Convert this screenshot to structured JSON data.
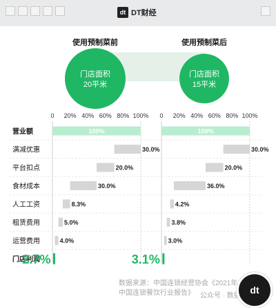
{
  "header": {
    "brand_mark": "dt",
    "brand": "DT财经"
  },
  "colors": {
    "accent_green": "#1fb764",
    "light_green": "#b9edcf",
    "bar_gray": "#d6d6d6",
    "connector": "#e2efe6"
  },
  "chart_data": {
    "type": "bar",
    "panels": [
      {
        "title": "使用预制菜前",
        "circle_label": "门店面积",
        "circle_value": "20平米",
        "values": [
          100,
          30.0,
          20.0,
          30.0,
          8.3,
          5.0,
          4.0
        ],
        "value_labels": [
          "100%",
          "30.0%",
          "20.0%",
          "30.0%",
          "8.3%",
          "5.0%",
          "4.0%"
        ],
        "profit": "2.7%"
      },
      {
        "title": "使用预制菜后",
        "circle_label": "门店面积",
        "circle_value": "15平米",
        "values": [
          100,
          30.0,
          20.0,
          36.0,
          4.2,
          3.8,
          3.0
        ],
        "value_labels": [
          "100%",
          "30.0%",
          "20.0%",
          "36.0%",
          "4.2%",
          "3.8%",
          "3.0%"
        ],
        "profit": "3.1%"
      }
    ],
    "categories": [
      "营业额",
      "满减优惠",
      "平台扣点",
      "食材成本",
      "人工工资",
      "租赁费用",
      "运营费用",
      "门店利润"
    ],
    "xticks": [
      "0",
      "20%",
      "40%",
      "60%",
      "80%",
      "100%"
    ],
    "xlim": [
      0,
      100
    ]
  },
  "footer": {
    "source_line1": "数据来源：中国连锁经营协会《2021年",
    "source_line2": "中国连锁餐饮行业报告》",
    "watermark": "公众号 · 数据主义",
    "corner_logo": "dt"
  }
}
